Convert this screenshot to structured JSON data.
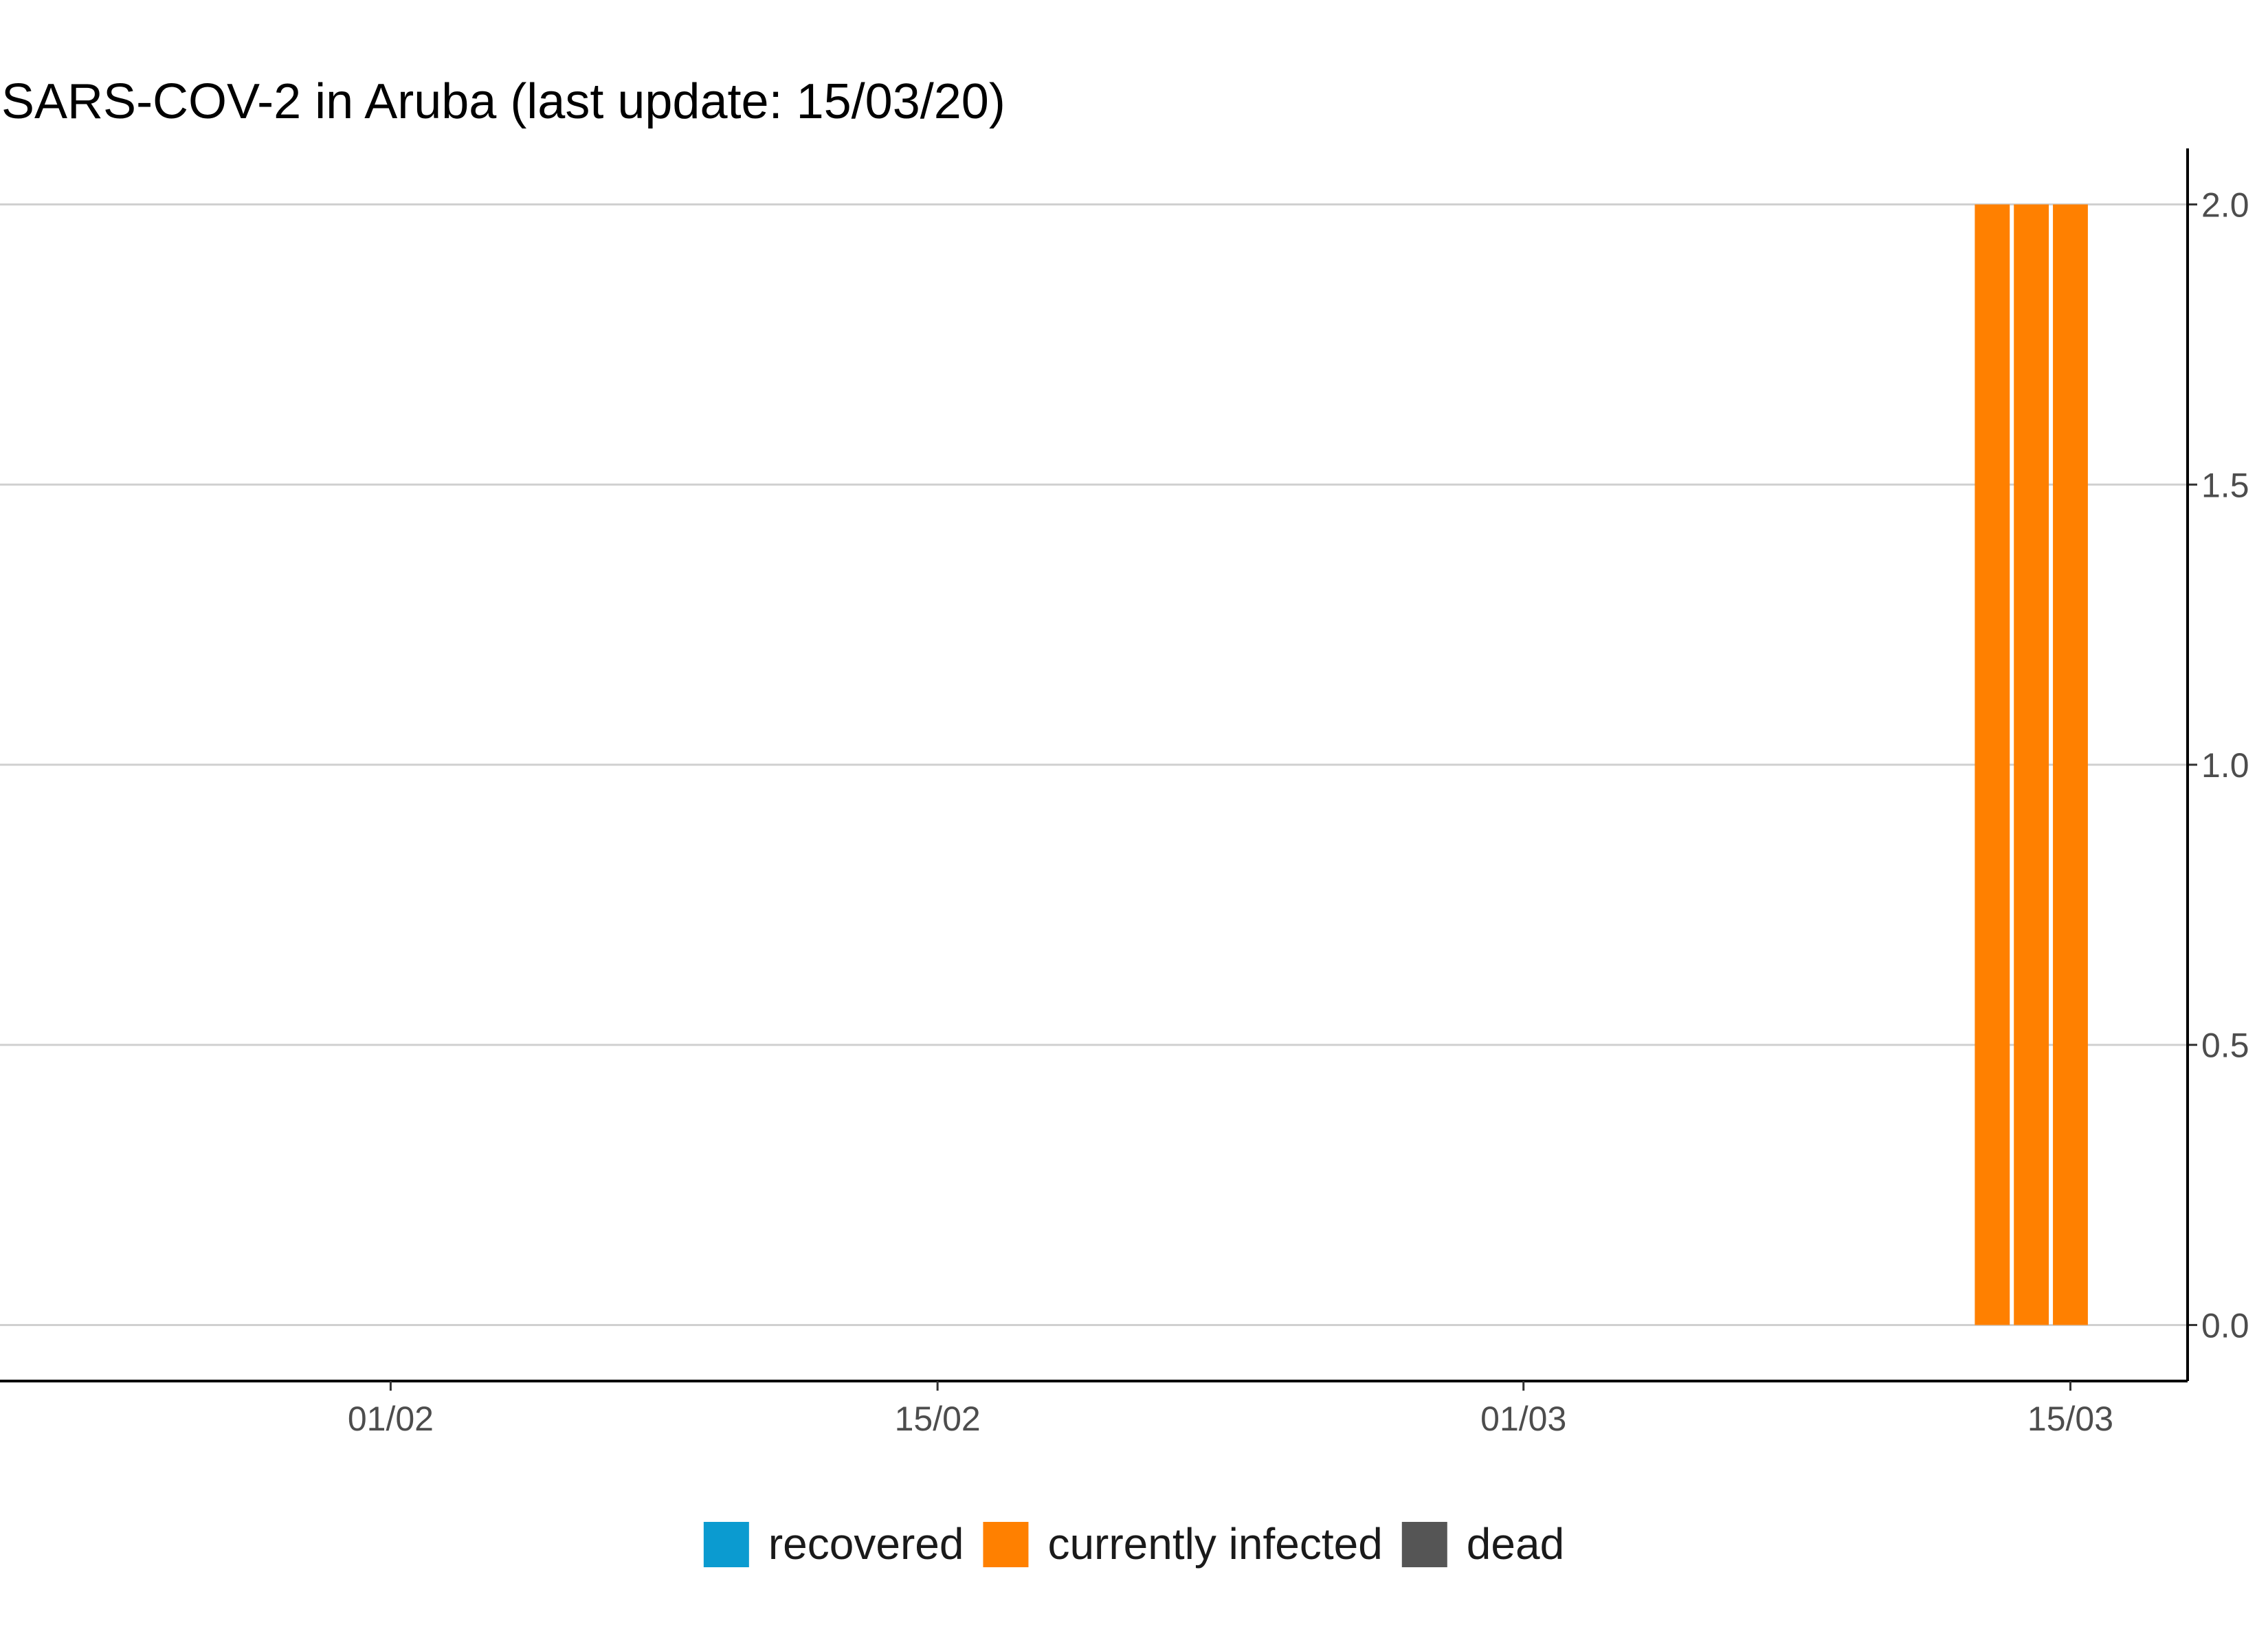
{
  "chart_data": {
    "type": "bar",
    "title": "SARS-COV-2 in Aruba (last update: 15/03/20)",
    "xlabel": "",
    "ylabel": "",
    "x_axis_type": "date",
    "xlim": [
      "2020-01-22",
      "2020-03-18"
    ],
    "ylim": [
      -0.1,
      2.1
    ],
    "x_ticks": [
      {
        "date": "2020-02-01",
        "label": "01/02"
      },
      {
        "date": "2020-02-15",
        "label": "15/02"
      },
      {
        "date": "2020-03-01",
        "label": "01/03"
      },
      {
        "date": "2020-03-15",
        "label": "15/03"
      }
    ],
    "y_ticks": [
      "0.0",
      "0.5",
      "1.0",
      "1.5",
      "2.0"
    ],
    "y_axis_position": "right",
    "grid": {
      "horizontal": true,
      "vertical": false
    },
    "stacked": true,
    "legend_position": "bottom",
    "series": [
      {
        "name": "recovered",
        "color": "#0b9bd0",
        "points": []
      },
      {
        "name": "currently infected",
        "color": "#ff8000",
        "points": [
          {
            "date": "2020-03-13",
            "value": 2
          },
          {
            "date": "2020-03-14",
            "value": 2
          },
          {
            "date": "2020-03-15",
            "value": 2
          }
        ]
      },
      {
        "name": "dead",
        "color": "#555555",
        "points": []
      }
    ]
  }
}
